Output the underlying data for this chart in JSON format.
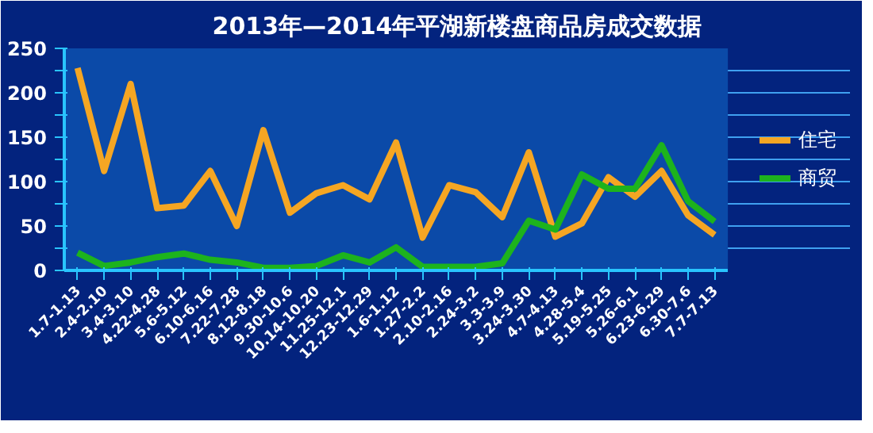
{
  "chart_data": {
    "type": "line",
    "title": "2013年—2014年平湖新楼盘商品房成交数据",
    "categories": [
      "1.7-1.13",
      "2.4-2.10",
      "3.4-3.10",
      "4.22-4.28",
      "5.6-5.12",
      "6.10-6.16",
      "7.22-7.28",
      "8.12-8.18",
      "9.30-10.6",
      "10.14-10.20",
      "11.25-12.1",
      "12.23-12.29",
      "1.6-1.12",
      "1.27-2.2",
      "2.10-2.16",
      "2.24-3.2",
      "3.3-3.9",
      "3.24-3.30",
      "4.7-4.13",
      "4.28-5.4",
      "5.19-5.25",
      "5.26-6.1",
      "6.23-6.29",
      "6.30-7.6",
      "7.7-7.13"
    ],
    "series": [
      {
        "name": "住宅",
        "color": "#f5a623",
        "values": [
          228,
          112,
          210,
          70,
          73,
          112,
          50,
          158,
          65,
          87,
          96,
          80,
          144,
          37,
          96,
          88,
          60,
          133,
          38,
          53,
          105,
          83,
          112,
          62,
          40
        ]
      },
      {
        "name": "商贸",
        "color": "#1db31d",
        "values": [
          20,
          5,
          9,
          15,
          19,
          12,
          9,
          3,
          3,
          5,
          17,
          9,
          26,
          4,
          4,
          4,
          8,
          56,
          46,
          108,
          92,
          92,
          141,
          78,
          55
        ]
      }
    ],
    "ylim": [
      0,
      250
    ],
    "yticks": [
      0,
      {
        "value": 25,
        "label": null
      },
      50,
      {
        "value": 75,
        "label": null
      },
      100,
      {
        "value": 125,
        "label": null
      },
      150,
      {
        "value": 175,
        "label": null
      },
      200,
      {
        "value": 225,
        "label": null
      },
      250
    ],
    "grid": "y",
    "legend": "right",
    "marker": "none",
    "line_style": "solid"
  }
}
